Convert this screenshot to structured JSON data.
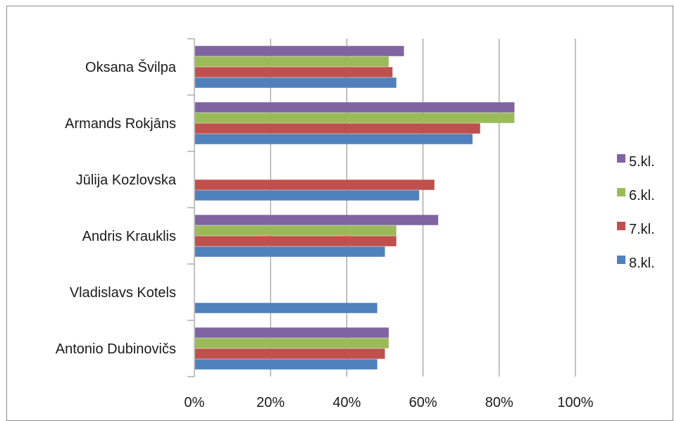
{
  "chart_data": {
    "type": "bar",
    "orientation": "horizontal",
    "categories": [
      "Oksana Švilpa",
      "Armands Rokjāns",
      "Jūlija Kozlovska",
      "Andris Krauklis",
      "Vladislavs Kotels",
      "Antonio Dubinovičs"
    ],
    "series": [
      {
        "name": "5.kl.",
        "color": "#8064a2",
        "values": [
          55,
          84,
          null,
          64,
          null,
          51
        ]
      },
      {
        "name": "6.kl.",
        "color": "#9bbb59",
        "values": [
          51,
          84,
          null,
          53,
          null,
          51
        ]
      },
      {
        "name": "7.kl.",
        "color": "#c0504d",
        "values": [
          52,
          75,
          63,
          53,
          null,
          50
        ]
      },
      {
        "name": "8.kl.",
        "color": "#4f81bd",
        "values": [
          53,
          73,
          59,
          50,
          48,
          48
        ]
      }
    ],
    "xlim": [
      0,
      100
    ],
    "xticks": [
      "0%",
      "20%",
      "40%",
      "60%",
      "80%",
      "100%"
    ],
    "grid": true,
    "legend": "right",
    "title": "",
    "xlabel": "",
    "ylabel": ""
  }
}
